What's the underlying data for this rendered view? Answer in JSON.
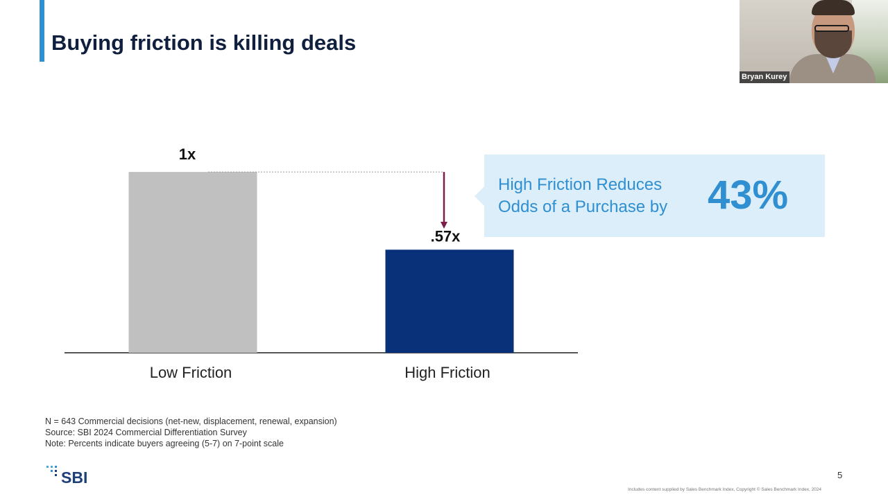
{
  "slide": {
    "title": "Buying friction is killing deals",
    "page_number": "5",
    "copyright": "Includes content supplied by Sales Benchmark Index, Copyright © Sales Benchmark Index, 2024"
  },
  "video": {
    "participant_name": "Bryan Kurey"
  },
  "chart_data": {
    "type": "bar",
    "title": "",
    "categories": [
      "Low Friction",
      "High Friction"
    ],
    "values": [
      1,
      0.57
    ],
    "data_labels": [
      "1x",
      ".57x"
    ],
    "xlabel": "",
    "ylabel": "",
    "ylim": [
      0,
      1.1
    ],
    "colors": [
      "#c0c0c0",
      "#08317a"
    ],
    "grid": false,
    "annotation_color": "#7a1e4a"
  },
  "callout": {
    "text": "High Friction Reduces Odds of a Purchase by",
    "value": "43%"
  },
  "notes": [
    "N = 643 Commercial decisions (net-new, displacement, renewal, expansion)",
    "Source: SBI 2024 Commercial Differentiation Survey",
    "Note: Percents indicate buyers agreeing (5-7) on 7-point scale"
  ],
  "logo": {
    "text": "SBI"
  },
  "colors": {
    "accent": "#2f8fd1",
    "title": "#0f1f3d",
    "callout_bg": "#dbeef9"
  }
}
